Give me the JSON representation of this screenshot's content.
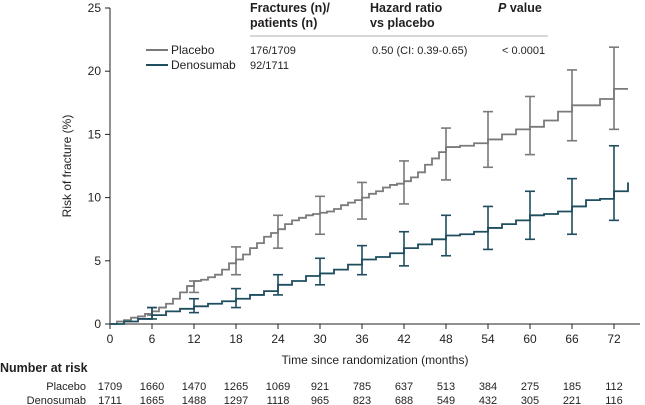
{
  "chart_data": {
    "type": "line",
    "xlabel": "Time since randomization (months)",
    "ylabel": "Risk of fracture (%)",
    "xlim": [
      0,
      75
    ],
    "ylim": [
      0,
      25
    ],
    "x_ticks": [
      0,
      6,
      12,
      18,
      24,
      30,
      36,
      42,
      48,
      54,
      60,
      66,
      72
    ],
    "y_ticks": [
      0,
      5,
      10,
      15,
      20,
      25
    ],
    "grid": false,
    "legend_position": "top-left",
    "colors": {
      "placebo": "#7a7a7a",
      "denosumab": "#1d4d5e"
    },
    "table_headers": {
      "fractures_line1": "Fractures (n)/",
      "fractures_line2": "patients (n)",
      "hr_line1": "Hazard ratio",
      "hr_line2": "vs placebo",
      "p_italic": "P",
      "p_rest": " value"
    },
    "series": [
      {
        "name": "Placebo",
        "fractures": "176/1709",
        "hazard_ratio": "0.50 (CI: 0.39-0.65)",
        "p_value": "< 0.0001",
        "x": [
          0,
          1,
          2,
          3,
          4,
          5,
          6,
          7,
          8,
          9,
          10,
          11,
          12,
          13,
          14,
          15,
          16,
          17,
          18,
          19,
          20,
          21,
          22,
          23,
          24,
          25,
          26,
          27,
          28,
          29,
          30,
          31,
          32,
          33,
          34,
          35,
          36,
          37,
          38,
          39,
          40,
          41,
          42,
          43,
          44,
          45,
          46,
          47,
          48,
          50,
          52,
          54,
          56,
          58,
          60,
          62,
          64,
          66,
          68,
          70,
          72,
          74
        ],
        "y": [
          0,
          0.2,
          0.3,
          0.5,
          0.6,
          0.8,
          1.0,
          1.3,
          1.6,
          2.0,
          2.5,
          3.0,
          3.4,
          3.5,
          3.7,
          3.9,
          4.3,
          4.8,
          5.1,
          5.5,
          6.0,
          6.4,
          6.9,
          7.2,
          7.5,
          7.9,
          8.2,
          8.4,
          8.6,
          8.7,
          8.8,
          8.9,
          9.1,
          9.4,
          9.6,
          9.8,
          10.0,
          10.3,
          10.5,
          10.8,
          11.0,
          11.1,
          11.3,
          11.6,
          12.0,
          12.6,
          13.1,
          13.6,
          14.0,
          14.1,
          14.3,
          14.6,
          15.0,
          15.4,
          15.6,
          16.1,
          16.8,
          17.3,
          17.3,
          17.8,
          18.6,
          18.6
        ],
        "ci_x": [
          6,
          12,
          18,
          24,
          30,
          36,
          42,
          48,
          54,
          60,
          66,
          72
        ],
        "ci_low": [
          0.7,
          2.5,
          3.9,
          6.0,
          7.1,
          8.3,
          9.5,
          11.4,
          12.4,
          13.4,
          14.5,
          15.4
        ],
        "ci_high": [
          1.3,
          3.4,
          6.1,
          8.6,
          10.1,
          11.2,
          12.9,
          15.5,
          16.8,
          18.0,
          20.1,
          21.9
        ]
      },
      {
        "name": "Denosumab",
        "fractures": "92/1711",
        "x": [
          0,
          2,
          4,
          6,
          8,
          10,
          12,
          14,
          16,
          18,
          20,
          22,
          24,
          26,
          28,
          30,
          32,
          34,
          36,
          38,
          40,
          42,
          44,
          46,
          48,
          50,
          52,
          54,
          56,
          58,
          60,
          62,
          64,
          66,
          68,
          70,
          72,
          74
        ],
        "y": [
          0,
          0.2,
          0.4,
          0.7,
          1.0,
          1.2,
          1.4,
          1.6,
          1.8,
          2.0,
          2.3,
          2.6,
          3.1,
          3.4,
          3.8,
          4.0,
          4.3,
          4.7,
          5.1,
          5.3,
          5.6,
          6.0,
          6.3,
          6.7,
          7.0,
          7.1,
          7.3,
          7.6,
          7.9,
          8.2,
          8.6,
          8.7,
          8.9,
          9.3,
          9.8,
          9.9,
          10.5,
          11.2
        ],
        "ci_x": [
          6,
          12,
          18,
          24,
          30,
          36,
          42,
          48,
          54,
          60,
          66,
          72
        ],
        "ci_low": [
          0.4,
          0.9,
          1.3,
          2.3,
          3.1,
          3.9,
          4.6,
          5.4,
          5.9,
          6.7,
          7.1,
          8.2
        ],
        "ci_high": [
          1.3,
          2.0,
          2.8,
          3.9,
          5.2,
          6.2,
          7.3,
          8.6,
          9.3,
          10.5,
          11.5,
          14.1
        ]
      }
    ],
    "risk_table": {
      "title": "Number at risk",
      "rows": [
        {
          "label": "Placebo",
          "values": [
            "1709",
            "1660",
            "1470",
            "1265",
            "1069",
            "921",
            "785",
            "637",
            "513",
            "384",
            "275",
            "185",
            "112"
          ]
        },
        {
          "label": "Denosumab",
          "values": [
            "1711",
            "1665",
            "1488",
            "1297",
            "1118",
            "965",
            "823",
            "688",
            "549",
            "432",
            "305",
            "221",
            "116"
          ]
        }
      ]
    }
  }
}
